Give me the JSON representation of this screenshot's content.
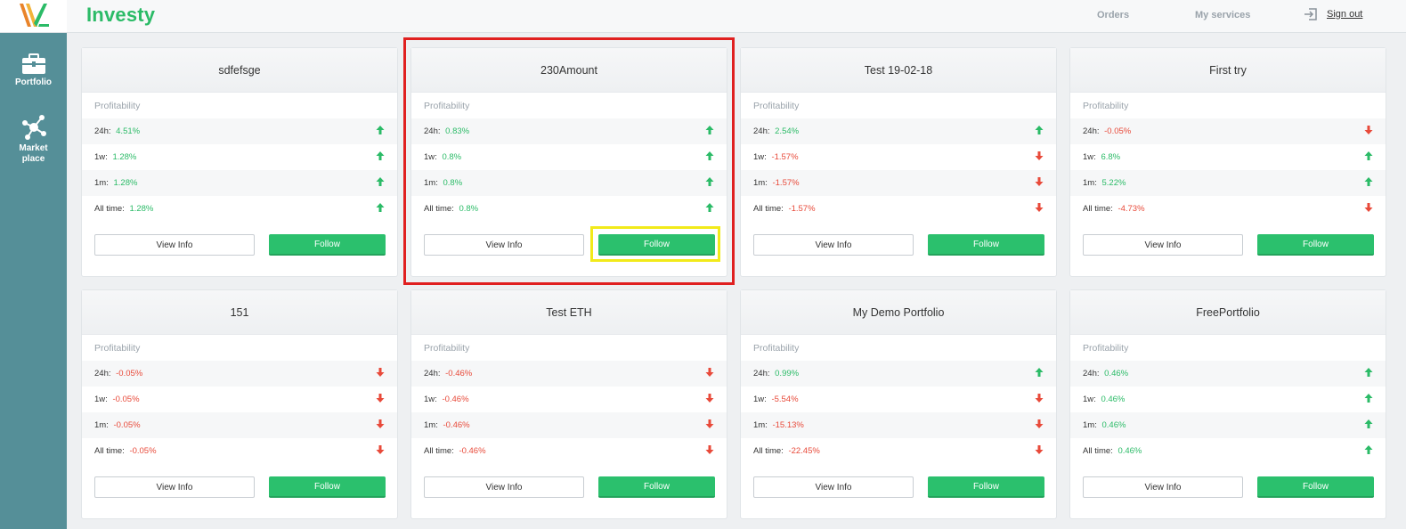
{
  "app": {
    "brand": "Investy"
  },
  "sidebar": {
    "items": [
      {
        "label": "Portfolio",
        "icon": "briefcase-icon"
      },
      {
        "label": "Market place",
        "icon": "network-icon"
      }
    ]
  },
  "header": {
    "orders": "Orders",
    "services": "My services",
    "signout": "Sign out"
  },
  "colors": {
    "accent": "#2bbb67",
    "sidebar": "#558f98",
    "positive": "#2bbb67",
    "negative": "#e84a3a",
    "highlight_red": "#e02020",
    "highlight_yellow": "#f2ea1a"
  },
  "cards": [
    {
      "title": "sdfefsge",
      "profitability": "Profitability",
      "rows": [
        {
          "label": "24h:",
          "value": "4.51%",
          "dir": "up"
        },
        {
          "label": "1w:",
          "value": "1.28%",
          "dir": "up"
        },
        {
          "label": "1m:",
          "value": "1.28%",
          "dir": "up"
        },
        {
          "label": "All time:",
          "value": "1.28%",
          "dir": "up"
        }
      ],
      "view": "View Info",
      "follow": "Follow"
    },
    {
      "title": "230Amount",
      "profitability": "Profitability",
      "rows": [
        {
          "label": "24h:",
          "value": "0.83%",
          "dir": "up"
        },
        {
          "label": "1w:",
          "value": "0.8%",
          "dir": "up"
        },
        {
          "label": "1m:",
          "value": "0.8%",
          "dir": "up"
        },
        {
          "label": "All time:",
          "value": "0.8%",
          "dir": "up"
        }
      ],
      "view": "View Info",
      "follow": "Follow"
    },
    {
      "title": "Test 19-02-18",
      "profitability": "Profitability",
      "rows": [
        {
          "label": "24h:",
          "value": "2.54%",
          "dir": "up"
        },
        {
          "label": "1w:",
          "value": "-1.57%",
          "dir": "down"
        },
        {
          "label": "1m:",
          "value": "-1.57%",
          "dir": "down"
        },
        {
          "label": "All time:",
          "value": "-1.57%",
          "dir": "down"
        }
      ],
      "view": "View Info",
      "follow": "Follow"
    },
    {
      "title": "First try",
      "profitability": "Profitability",
      "rows": [
        {
          "label": "24h:",
          "value": "-0.05%",
          "dir": "down"
        },
        {
          "label": "1w:",
          "value": "6.8%",
          "dir": "up"
        },
        {
          "label": "1m:",
          "value": "5.22%",
          "dir": "up"
        },
        {
          "label": "All time:",
          "value": "-4.73%",
          "dir": "down"
        }
      ],
      "view": "View Info",
      "follow": "Follow"
    },
    {
      "title": "151",
      "profitability": "Profitability",
      "rows": [
        {
          "label": "24h:",
          "value": "-0.05%",
          "dir": "down"
        },
        {
          "label": "1w:",
          "value": "-0.05%",
          "dir": "down"
        },
        {
          "label": "1m:",
          "value": "-0.05%",
          "dir": "down"
        },
        {
          "label": "All time:",
          "value": "-0.05%",
          "dir": "down"
        }
      ],
      "view": "View Info",
      "follow": "Follow"
    },
    {
      "title": "Test ETH",
      "profitability": "Profitability",
      "rows": [
        {
          "label": "24h:",
          "value": "-0.46%",
          "dir": "down"
        },
        {
          "label": "1w:",
          "value": "-0.46%",
          "dir": "down"
        },
        {
          "label": "1m:",
          "value": "-0.46%",
          "dir": "down"
        },
        {
          "label": "All time:",
          "value": "-0.46%",
          "dir": "down"
        }
      ],
      "view": "View Info",
      "follow": "Follow"
    },
    {
      "title": "My Demo Portfolio",
      "profitability": "Profitability",
      "rows": [
        {
          "label": "24h:",
          "value": "0.99%",
          "dir": "up"
        },
        {
          "label": "1w:",
          "value": "-5.54%",
          "dir": "down"
        },
        {
          "label": "1m:",
          "value": "-15.13%",
          "dir": "down"
        },
        {
          "label": "All time:",
          "value": "-22.45%",
          "dir": "down"
        }
      ],
      "view": "View Info",
      "follow": "Follow"
    },
    {
      "title": "FreePortfolio",
      "profitability": "Profitability",
      "rows": [
        {
          "label": "24h:",
          "value": "0.46%",
          "dir": "up"
        },
        {
          "label": "1w:",
          "value": "0.46%",
          "dir": "up"
        },
        {
          "label": "1m:",
          "value": "0.46%",
          "dir": "up"
        },
        {
          "label": "All time:",
          "value": "0.46%",
          "dir": "up"
        }
      ],
      "view": "View Info",
      "follow": "Follow"
    }
  ]
}
